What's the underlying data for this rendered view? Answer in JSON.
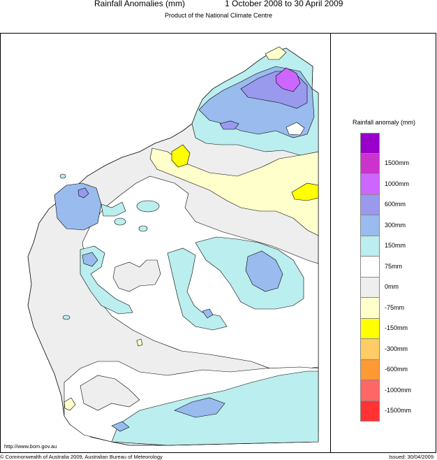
{
  "header": {
    "title": "Rainfall Anomalies (mm)",
    "period": "1 October 2008 to 30 April 2009",
    "subtitle": "Product of the National Climate Centre"
  },
  "legend": {
    "title": "Rainfall anomaly (mm)",
    "items": [
      {
        "label": "",
        "color": "#9900cc"
      },
      {
        "label": "1500mm",
        "color": "#cc33cc"
      },
      {
        "label": "1000mm",
        "color": "#cc66ff"
      },
      {
        "label": "600mm",
        "color": "#9999ee"
      },
      {
        "label": "300mm",
        "color": "#99bbee"
      },
      {
        "label": "150mm",
        "color": "#bbeeee"
      },
      {
        "label": "75mm",
        "color": "#ffffff"
      },
      {
        "label": "0mm",
        "color": "#eeeeee"
      },
      {
        "label": "-75mm",
        "color": "#ffffcc"
      },
      {
        "label": "-150mm",
        "color": "#ffff00"
      },
      {
        "label": "-300mm",
        "color": "#ffcc66"
      },
      {
        "label": "-600mm",
        "color": "#ff9933"
      },
      {
        "label": "-1000mm",
        "color": "#ff6666"
      },
      {
        "label": "-1500mm",
        "color": "#ff3333"
      }
    ]
  },
  "footer": {
    "url": "http://www.bom.gov.au",
    "copyright": "© Commonwealth of Australia 2009, Australian Bureau of Meteorology",
    "issued": "Issued: 30/04/2009"
  }
}
